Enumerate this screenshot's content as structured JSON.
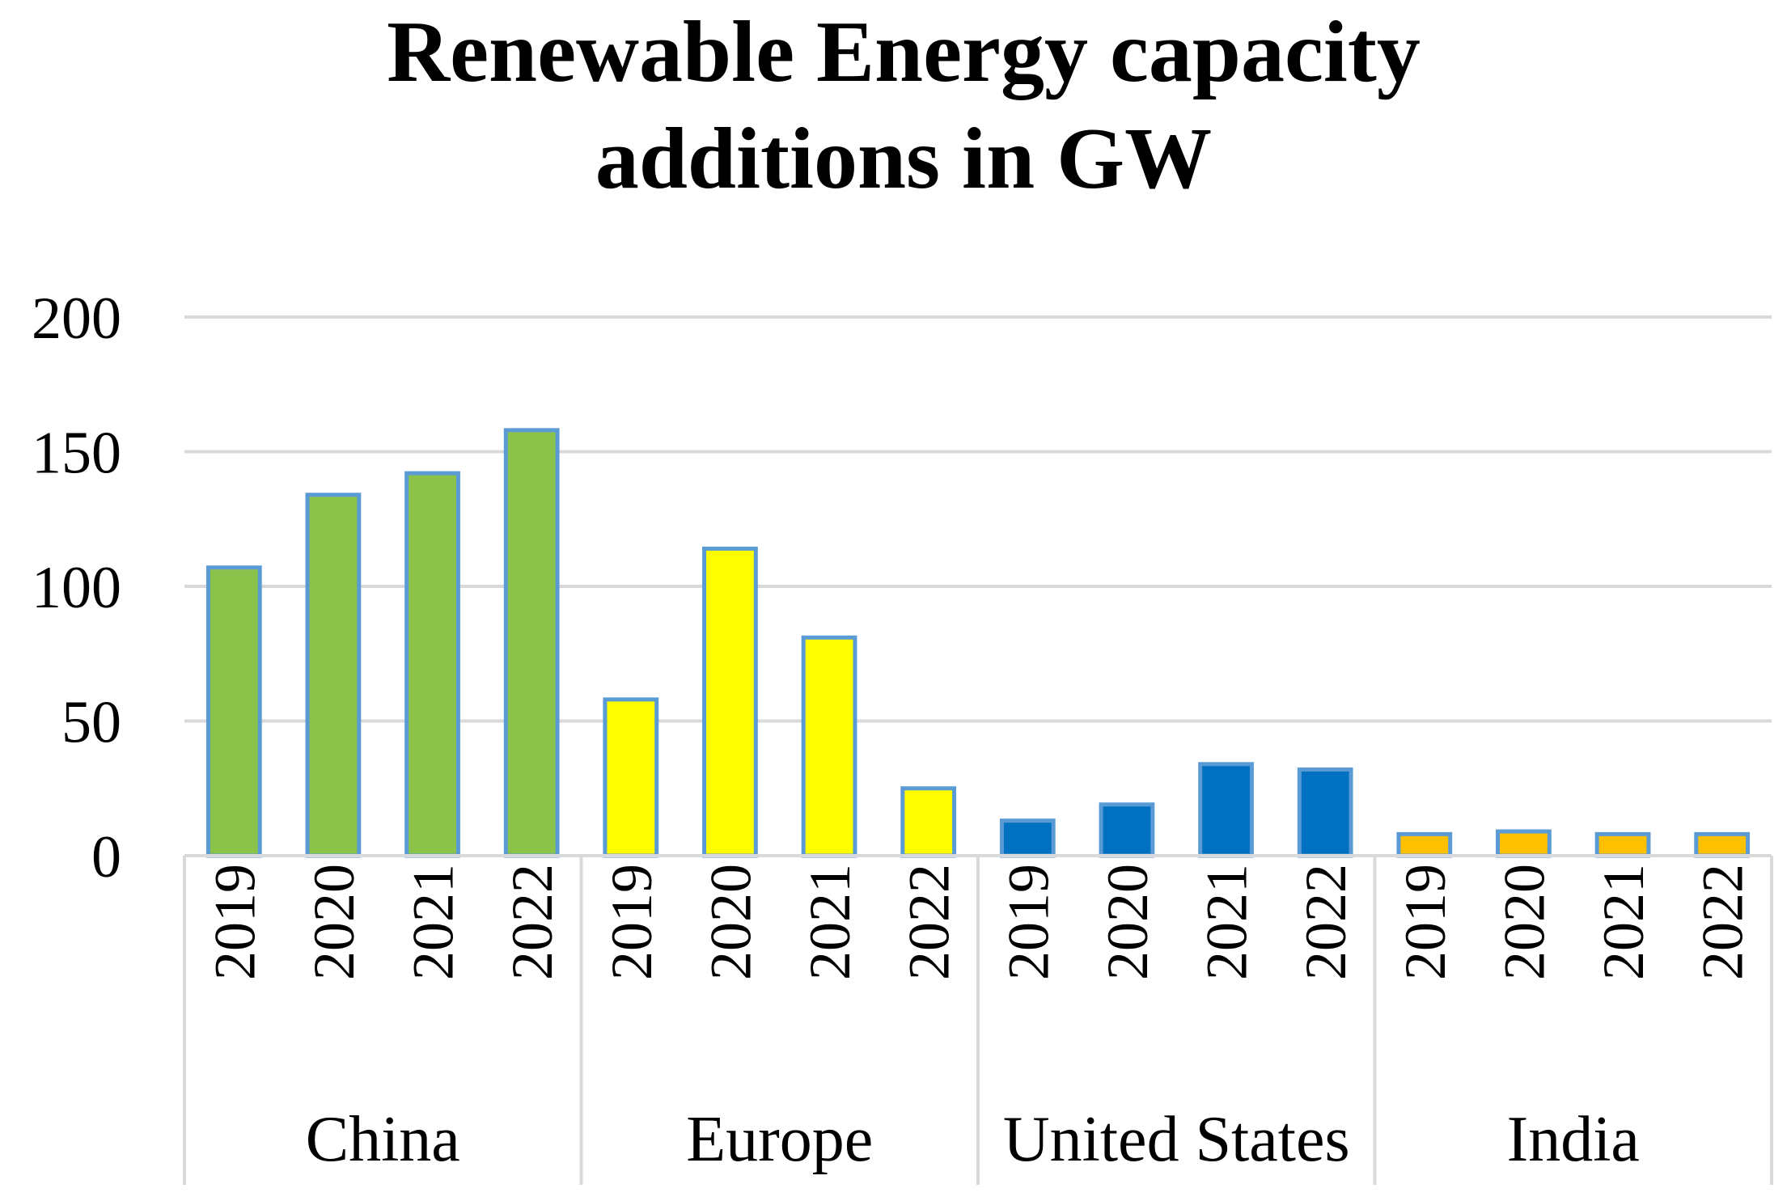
{
  "chart_data": {
    "type": "bar",
    "title_lines": [
      "Renewable Energy capacity",
      "additions in GW"
    ],
    "title": "Renewable Energy capacity additions in GW",
    "xlabel": "",
    "ylabel": "",
    "ylim": [
      0,
      200
    ],
    "yticks": [
      0,
      50,
      100,
      150,
      200
    ],
    "grid": true,
    "legend": "none",
    "groups": [
      {
        "name": "China",
        "color": "#8BC34A",
        "categories": [
          "2019",
          "2020",
          "2021",
          "2022"
        ],
        "values": [
          107,
          134,
          142,
          158
        ]
      },
      {
        "name": "Europe",
        "color": "#FFFF00",
        "categories": [
          "2019",
          "2020",
          "2021",
          "2022"
        ],
        "values": [
          58,
          114,
          81,
          25
        ]
      },
      {
        "name": "United States",
        "color": "#0070C0",
        "categories": [
          "2019",
          "2020",
          "2021",
          "2022"
        ],
        "values": [
          13,
          19,
          34,
          32
        ]
      },
      {
        "name": "India",
        "color": "#FFC000",
        "categories": [
          "2019",
          "2020",
          "2021",
          "2022"
        ],
        "values": [
          8,
          9,
          8,
          8
        ]
      }
    ],
    "bar_outline_color": "#5B9BD5",
    "grid_color": "#D9D9D9"
  }
}
